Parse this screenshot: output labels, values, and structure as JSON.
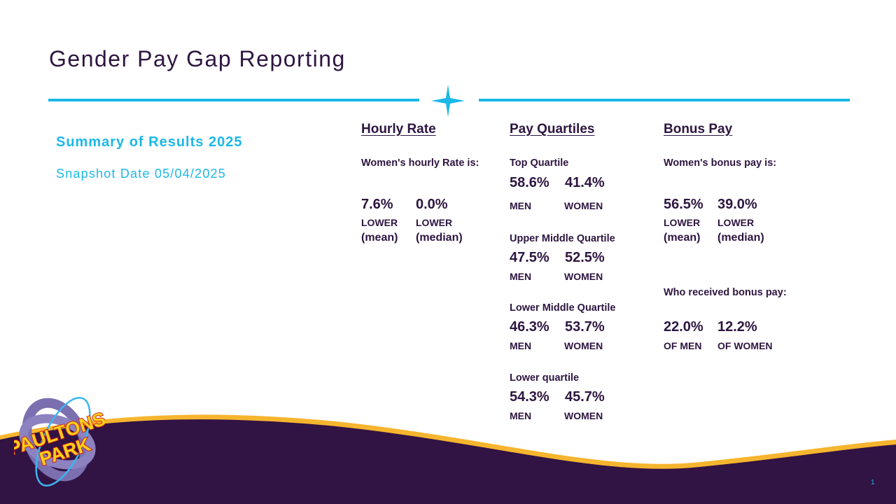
{
  "title": "Gender Pay Gap Reporting",
  "summary": {
    "heading": "Summary of Results 2025",
    "snapshot": "Snapshot Date 05/04/2025"
  },
  "hourly": {
    "heading": "Hourly Rate",
    "intro": "Women's hourly Rate is:",
    "mean": "7.6%",
    "median": "0.0%",
    "lower": "LOWER",
    "mean_label": "(mean)",
    "median_label": "(median)"
  },
  "quartiles": {
    "heading": "Pay Quartiles",
    "men": "MEN",
    "women": "WOMEN",
    "items": [
      {
        "label": "Top Quartile",
        "men": "58.6%",
        "women": "41.4%"
      },
      {
        "label": "Upper Middle Quartile",
        "men": "47.5%",
        "women": "52.5%"
      },
      {
        "label": "Lower Middle Quartile",
        "men": "46.3%",
        "women": "53.7%"
      },
      {
        "label": "Lower quartile",
        "men": "54.3%",
        "women": "45.7%"
      }
    ]
  },
  "bonus": {
    "heading": "Bonus Pay",
    "intro": "Women's bonus pay is:",
    "mean": "56.5%",
    "median": "39.0%",
    "lower": "LOWER",
    "mean_label": "(mean)",
    "median_label": "(median)",
    "received_heading": "Who received bonus pay:",
    "men": "22.0%",
    "women": "12.2%",
    "men_label": "OF MEN",
    "women_label": "OF WOMEN"
  },
  "logo": {
    "text": "PAULTONS PARK"
  },
  "page_number": "1",
  "colors": {
    "accent": "#1bb8e8",
    "navy": "#2d1540",
    "wave": "#311344",
    "gold": "#f6b52e",
    "logo_yellow": "#f7d21a",
    "logo_red": "#d4201f"
  }
}
